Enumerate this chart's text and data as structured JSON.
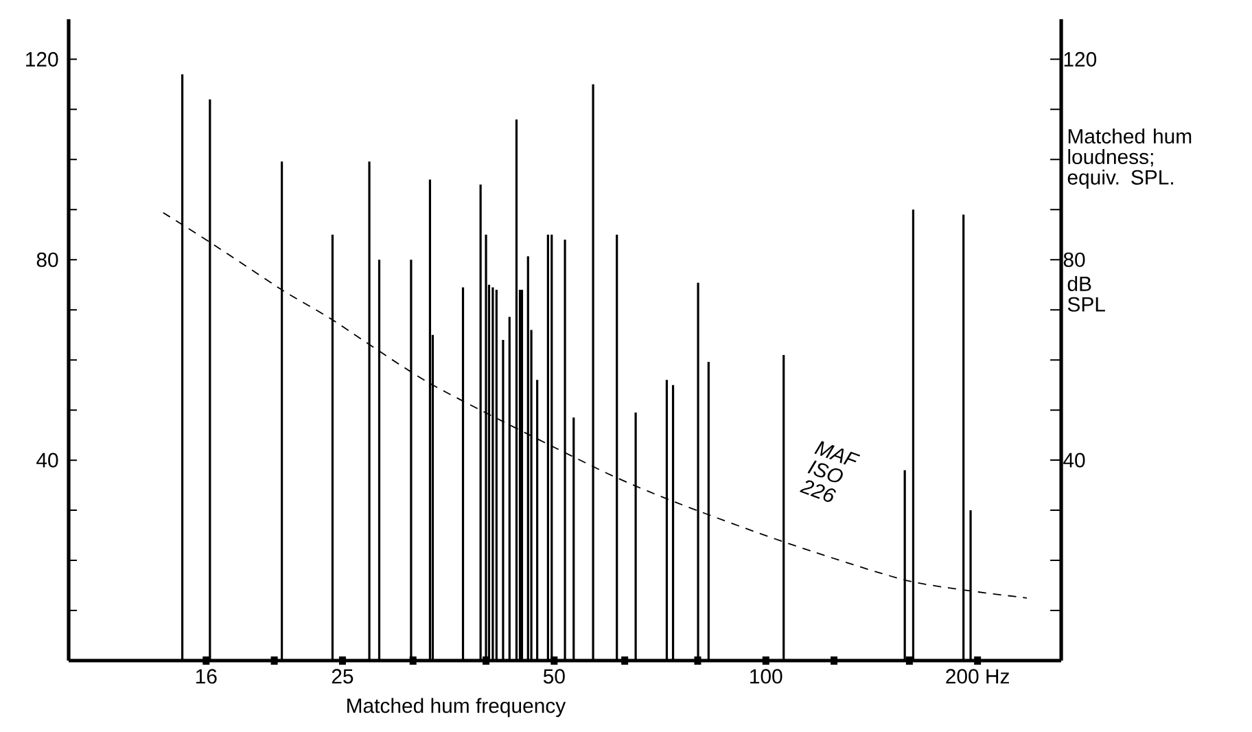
{
  "chart_data": {
    "type": "bar",
    "xlabel": "Matched hum frequency",
    "y2label": "Matched hum loudness; equiv. SPL.",
    "annotations": [
      "MAF ISO 226",
      "dB SPL"
    ],
    "log": "x",
    "xlim": [
      10.2,
      263
    ],
    "xticks": [
      16,
      {
        "value": 20,
        "label": null
      },
      25,
      {
        "value": 31.5,
        "label": null
      },
      {
        "value": 40,
        "label": null
      },
      50,
      {
        "value": 63,
        "label": null
      },
      {
        "value": 80,
        "label": null
      },
      100,
      {
        "value": 125,
        "label": null
      },
      {
        "value": 160,
        "label": null
      },
      {
        "value": 200,
        "label": "200 Hz"
      }
    ],
    "ylim": [
      0,
      128
    ],
    "yticks": [
      {
        "value": 10,
        "label": null
      },
      {
        "value": 20,
        "label": null
      },
      {
        "value": 30,
        "label": null
      },
      40,
      {
        "value": 50,
        "label": null
      },
      {
        "value": 60,
        "label": null
      },
      {
        "value": 70,
        "label": null
      },
      80,
      {
        "value": 90,
        "label": null
      },
      {
        "value": 100,
        "label": null
      },
      {
        "value": 110,
        "label": null
      },
      120
    ],
    "y2lim": [
      0,
      128
    ],
    "y2ticks": [
      {
        "value": 10,
        "label": null
      },
      {
        "value": 20,
        "label": null
      },
      {
        "value": 30,
        "label": null
      },
      40,
      {
        "value": 50,
        "label": null
      },
      {
        "value": 60,
        "label": null
      },
      {
        "value": 70,
        "label": null
      },
      80,
      {
        "value": 90,
        "label": null
      },
      {
        "value": 100,
        "label": null
      },
      {
        "value": 110,
        "label": null
      },
      120
    ],
    "series": [
      {
        "color": "#000000",
        "x": [
          14.8,
          16.2,
          20.5,
          24.2,
          27.3,
          28.2,
          31.3,
          33.3,
          33.6,
          37.1,
          39.3,
          40.0,
          40.4,
          40.9,
          41.4,
          42.3,
          43.2,
          44.2,
          44.7,
          45.0,
          45.9,
          46.4,
          47.3,
          49.0,
          49.6,
          51.8,
          53.3,
          56.8,
          61.4,
          65.3,
          72.3,
          73.8,
          80.1,
          82.9,
          106,
          157.6,
          162,
          191,
          195.5
        ],
        "values": [
          117,
          112,
          99.6,
          85,
          99.6,
          80,
          80,
          96,
          65,
          74.5,
          95,
          85,
          75,
          74.5,
          74,
          64,
          68.6,
          108,
          74,
          74,
          80.7,
          66,
          56,
          85,
          85,
          84,
          48.5,
          115,
          85,
          49.5,
          56,
          55,
          75.4,
          59.6,
          61,
          38,
          90,
          89,
          30
        ]
      },
      {
        "type": "line",
        "color": "#000000",
        "line_style": "dashed",
        "x": [
          13.9,
          16.2,
          20.5,
          24.2,
          33.6,
          58,
          74.4,
          106,
          160.6,
          235
        ],
        "values": [
          89.4,
          83.5,
          74,
          68,
          55,
          38.1,
          31.6,
          23.7,
          15.8,
          12.5
        ]
      }
    ]
  }
}
